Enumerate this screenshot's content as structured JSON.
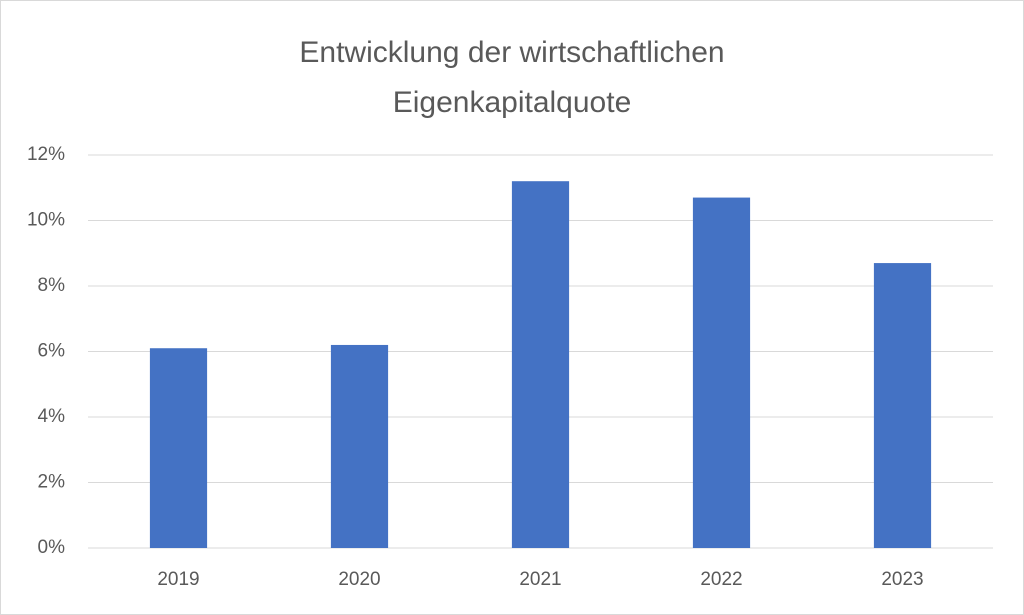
{
  "chart_data": {
    "type": "bar",
    "title": "Entwicklung der wirtschaftlichen Eigenkapitalquote",
    "categories": [
      "2019",
      "2020",
      "2021",
      "2022",
      "2023"
    ],
    "values": [
      6.1,
      6.2,
      11.2,
      10.7,
      8.7
    ],
    "color": "#4472c4",
    "ylim": [
      0,
      12
    ],
    "yticks": [
      {
        "value": 0,
        "label": "0%"
      },
      {
        "value": 2,
        "label": "2%"
      },
      {
        "value": 4,
        "label": "4%"
      },
      {
        "value": 6,
        "label": "6%"
      },
      {
        "value": 8,
        "label": "8%"
      },
      {
        "value": 10,
        "label": "10%"
      },
      {
        "value": 12,
        "label": "12%"
      }
    ],
    "grid": true
  }
}
